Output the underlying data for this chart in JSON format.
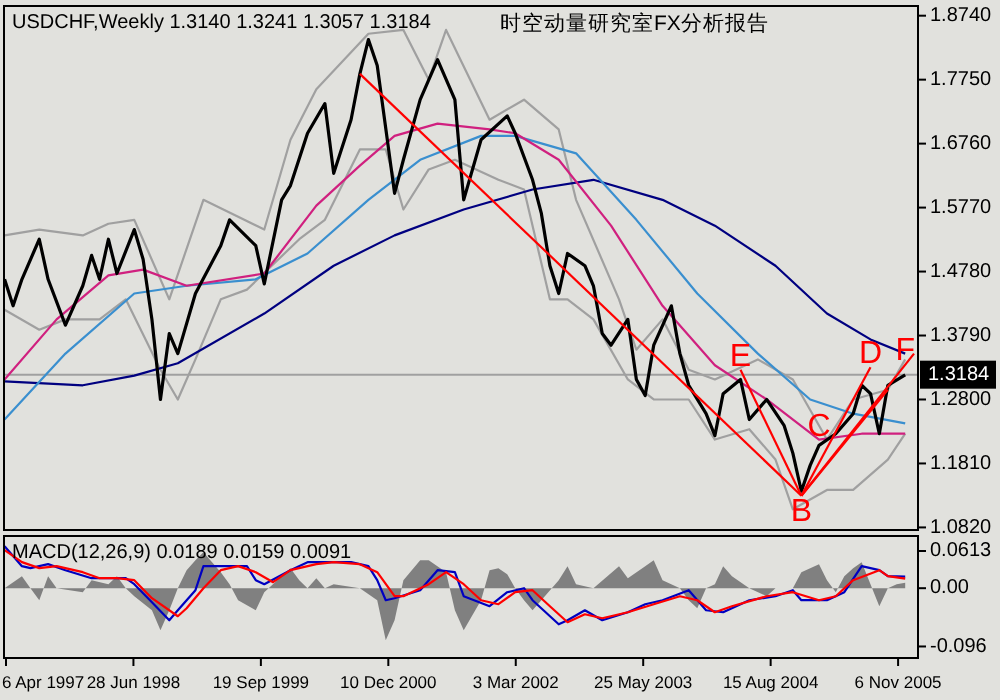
{
  "chart_data": [
    {
      "type": "line",
      "title": "USDCHF,Weekly  1.3140 1.3241 1.3057 1.3184",
      "subtitle": "时空动量研究室FX分析报告",
      "xlim": [
        "1997-03-30",
        "2006-01-15"
      ],
      "ylim": [
        1.078,
        1.889
      ],
      "yticks": [
        {
          "value": 1.874,
          "label": "1.8740"
        },
        {
          "value": 1.775,
          "label": "1.7750"
        },
        {
          "value": 1.676,
          "label": "1.6760"
        },
        {
          "value": 1.577,
          "label": "1.5770"
        },
        {
          "value": 1.478,
          "label": "1.4780"
        },
        {
          "value": 1.379,
          "label": "1.3790"
        },
        {
          "value": 1.28,
          "label": "1.2800"
        },
        {
          "value": 1.181,
          "label": "1.1810"
        },
        {
          "value": 1.082,
          "label": "1.0820"
        }
      ],
      "tick_labels": "y",
      "ref_lines": [
        {
          "axis": "y",
          "value": 1.3184,
          "label": "1.3184",
          "color": "#a0a0a0"
        }
      ],
      "series": [
        {
          "color": "#a0a0a0",
          "x": [
            "1997-04",
            "1997-08",
            "1998-01",
            "1998-04",
            "1998-07",
            "1998-11",
            "1999-03",
            "1999-10",
            "2000-01",
            "2000-04",
            "2000-10",
            "2001-02",
            "2001-05",
            "2001-07",
            "2001-12",
            "2002-04",
            "2002-08",
            "2002-10",
            "2003-03",
            "2003-05",
            "2003-08",
            "2003-11",
            "2004-02",
            "2004-07",
            "2004-11",
            "2005-03",
            "2005-06",
            "2005-10",
            "2005-12"
          ],
          "values": [
            1.534,
            1.543,
            1.534,
            1.552,
            1.558,
            1.435,
            1.589,
            1.543,
            1.682,
            1.76,
            1.846,
            1.852,
            1.775,
            1.852,
            1.713,
            1.744,
            1.698,
            1.589,
            1.435,
            1.357,
            1.404,
            1.326,
            1.311,
            1.342,
            1.311,
            1.218,
            1.28,
            1.295,
            1.342
          ]
        },
        {
          "color": "#a0a0a0",
          "x": [
            "1997-04",
            "1997-08",
            "1997-11",
            "1998-03",
            "1998-06",
            "1998-10",
            "1998-12",
            "1999-02",
            "1999-05",
            "1999-08",
            "2000-02",
            "2000-05",
            "2000-09",
            "2000-12",
            "2001-02",
            "2001-05",
            "2001-08",
            "2002-01",
            "2002-04",
            "2002-07",
            "2002-09",
            "2002-12",
            "2003-04",
            "2003-07",
            "2003-11",
            "2004-02",
            "2004-06",
            "2004-09",
            "2004-11",
            "2005-03",
            "2005-06",
            "2005-10",
            "2005-12"
          ],
          "values": [
            1.419,
            1.388,
            1.404,
            1.404,
            1.435,
            1.326,
            1.28,
            1.342,
            1.435,
            1.45,
            1.528,
            1.558,
            1.667,
            1.667,
            1.574,
            1.636,
            1.651,
            1.62,
            1.605,
            1.435,
            1.435,
            1.404,
            1.311,
            1.28,
            1.28,
            1.218,
            1.234,
            1.187,
            1.11,
            1.14,
            1.14,
            1.187,
            1.227
          ]
        },
        {
          "color": "#000080",
          "x": [
            "1997-04",
            "1998-01",
            "1998-07",
            "1998-12",
            "1999-10",
            "2000-06",
            "2001-01",
            "2001-09",
            "2002-05",
            "2002-12",
            "2003-08",
            "2004-02",
            "2004-09",
            "2005-03",
            "2005-08",
            "2005-12"
          ],
          "values": [
            1.308,
            1.302,
            1.317,
            1.336,
            1.413,
            1.487,
            1.534,
            1.574,
            1.605,
            1.62,
            1.589,
            1.549,
            1.487,
            1.413,
            1.373,
            1.351
          ]
        },
        {
          "color": "#3a8fcf",
          "x": [
            "1997-04",
            "1997-11",
            "1998-07",
            "1999-01",
            "1999-09",
            "2000-03",
            "2000-10",
            "2001-04",
            "2001-11",
            "2002-03",
            "2002-10",
            "2003-05",
            "2003-12",
            "2004-07",
            "2005-01",
            "2005-06",
            "2005-12"
          ],
          "values": [
            1.249,
            1.351,
            1.444,
            1.456,
            1.466,
            1.506,
            1.589,
            1.651,
            1.688,
            1.688,
            1.661,
            1.558,
            1.444,
            1.351,
            1.28,
            1.258,
            1.243
          ]
        },
        {
          "color": "#d0207f",
          "x": [
            "1997-04",
            "1997-10",
            "1998-04",
            "1998-08",
            "1999-01",
            "1999-10",
            "2000-04",
            "2000-09",
            "2001-01",
            "2001-06",
            "2001-12",
            "2002-03",
            "2002-08",
            "2003-02",
            "2003-08",
            "2004-02",
            "2004-08",
            "2005-02",
            "2005-07",
            "2005-12"
          ],
          "values": [
            1.311,
            1.404,
            1.472,
            1.481,
            1.456,
            1.475,
            1.58,
            1.642,
            1.688,
            1.707,
            1.698,
            1.692,
            1.651,
            1.549,
            1.425,
            1.333,
            1.28,
            1.218,
            1.227,
            1.227
          ]
        },
        {
          "color": "#000000",
          "x": [
            "1997-04",
            "1997-05",
            "1997-06",
            "1997-08",
            "1997-09",
            "1997-11",
            "1998-01",
            "1998-02",
            "1998-03",
            "1998-04",
            "1998-05",
            "1998-07",
            "1998-08",
            "1998-09",
            "1998-10",
            "1998-11",
            "1998-12",
            "1999-02",
            "1999-05",
            "1999-06",
            "1999-09",
            "1999-10",
            "1999-12",
            "2000-01",
            "2000-03",
            "2000-05",
            "2000-06",
            "2000-08",
            "2000-09",
            "2000-10",
            "2000-11",
            "2001-01",
            "2001-02",
            "2001-04",
            "2001-06",
            "2001-08",
            "2001-09",
            "2001-11",
            "2002-02",
            "2002-03",
            "2002-05",
            "2002-06",
            "2002-07",
            "2002-08",
            "2002-09",
            "2002-11",
            "2002-12",
            "2003-01",
            "2003-02",
            "2003-04",
            "2003-05",
            "2003-06",
            "2003-07",
            "2003-09",
            "2003-10",
            "2003-11",
            "2004-01",
            "2004-02",
            "2004-03",
            "2004-05",
            "2004-06",
            "2004-08",
            "2004-10",
            "2004-11",
            "2004-12",
            "2005-01",
            "2005-02",
            "2005-04",
            "2005-06",
            "2005-07",
            "2005-08",
            "2005-09",
            "2005-10",
            "2005-12"
          ],
          "values": [
            1.466,
            1.425,
            1.466,
            1.528,
            1.466,
            1.395,
            1.456,
            1.503,
            1.466,
            1.528,
            1.475,
            1.543,
            1.497,
            1.404,
            1.28,
            1.382,
            1.351,
            1.444,
            1.518,
            1.558,
            1.518,
            1.459,
            1.589,
            1.611,
            1.692,
            1.738,
            1.63,
            1.713,
            1.784,
            1.837,
            1.797,
            1.599,
            1.651,
            1.744,
            1.806,
            1.744,
            1.589,
            1.682,
            1.719,
            1.692,
            1.62,
            1.568,
            1.487,
            1.444,
            1.506,
            1.487,
            1.456,
            1.382,
            1.364,
            1.404,
            1.311,
            1.286,
            1.364,
            1.425,
            1.351,
            1.302,
            1.258,
            1.224,
            1.289,
            1.311,
            1.249,
            1.28,
            1.24,
            1.197,
            1.138,
            1.178,
            1.209,
            1.227,
            1.258,
            1.302,
            1.289,
            1.227,
            1.302,
            1.318
          ]
        },
        {
          "color": "#ff0000",
          "x": [
            "2000-09",
            "2004-12"
          ],
          "values": [
            1.784,
            1.131
          ]
        },
        {
          "color": "#ff0000",
          "x": [
            "2004-05",
            "2004-12"
          ],
          "values": [
            1.326,
            1.131
          ]
        },
        {
          "color": "#ff0000",
          "x": [
            "2004-12",
            "2005-08"
          ],
          "values": [
            1.131,
            1.33
          ]
        },
        {
          "color": "#ff0000",
          "x": [
            "2004-12",
            "2005-10"
          ],
          "values": [
            1.131,
            1.295
          ]
        },
        {
          "color": "#ff0000",
          "x": [
            "2004-12",
            "2006-01"
          ],
          "values": [
            1.131,
            1.351
          ]
        }
      ],
      "annotations": [
        {
          "text": "E",
          "x": "2004-05",
          "y": 1.326
        },
        {
          "text": "C",
          "x": "2005-02",
          "y": 1.218
        },
        {
          "text": "D",
          "x": "2005-08",
          "y": 1.33
        },
        {
          "text": "F",
          "x": "2005-12",
          "y": 1.335
        },
        {
          "text": "B",
          "x": "2004-12",
          "y": 1.131
        }
      ]
    },
    {
      "type": "line",
      "title": "MACD(12,26,9) 0.0189 0.0159 0.0091",
      "xlim": [
        "1997-03-30",
        "2006-01-15"
      ],
      "ylim": [
        -0.115,
        0.086
      ],
      "xticks": [
        {
          "value": "1997-04-06",
          "label": "6 Apr 1997"
        },
        {
          "value": "1998-06-28",
          "label": "28 Jun 1998"
        },
        {
          "value": "1999-09-19",
          "label": "19 Sep 1999"
        },
        {
          "value": "2000-12-10",
          "label": "10 Dec 2000"
        },
        {
          "value": "2002-03-03",
          "label": "3 Mar 2002"
        },
        {
          "value": "2003-05-25",
          "label": "25 May 2003"
        },
        {
          "value": "2004-08-15",
          "label": "15 Aug 2004"
        },
        {
          "value": "2005-11-06",
          "label": "6 Nov 2005"
        }
      ],
      "yticks": [
        {
          "value": 0.0613,
          "label": "0.0613"
        },
        {
          "value": 0,
          "label": "0.00"
        },
        {
          "value": -0.096,
          "label": "-0.096"
        }
      ],
      "series": [
        {
          "type": "area",
          "color": "#808080",
          "x": [
            "1997-04",
            "1997-06",
            "1997-07",
            "1997-08",
            "1997-09",
            "1997-10",
            "1998-01",
            "1998-02",
            "1998-04",
            "1998-05",
            "1998-06",
            "1998-07",
            "1998-09",
            "1998-10",
            "1998-11",
            "1998-12",
            "1999-01",
            "1999-02",
            "1999-03",
            "1999-05",
            "1999-06",
            "1999-07",
            "1999-09",
            "1999-10",
            "1999-12",
            "2000-01",
            "2000-02",
            "2000-03",
            "2000-04",
            "2000-05",
            "2000-06",
            "2000-09",
            "2000-11",
            "2000-12",
            "2001-01",
            "2001-02",
            "2001-04",
            "2001-05",
            "2001-07",
            "2001-08",
            "2001-09",
            "2001-11",
            "2001-12",
            "2002-01",
            "2002-02",
            "2002-03",
            "2002-04",
            "2002-05",
            "2002-06",
            "2002-08",
            "2002-09",
            "2002-10",
            "2002-12",
            "2003-03",
            "2003-04",
            "2003-06",
            "2003-07",
            "2003-08",
            "2003-10",
            "2003-11",
            "2003-12",
            "2004-01",
            "2004-02",
            "2004-03",
            "2004-04",
            "2004-06",
            "2004-08",
            "2004-09",
            "2004-11",
            "2004-12",
            "2005-02",
            "2005-03",
            "2005-04",
            "2005-05",
            "2005-06",
            "2005-07",
            "2005-09",
            "2005-10",
            "2005-11",
            "2005-12"
          ],
          "values": [
            0,
            0.0198,
            0,
            -0.0198,
            0.0198,
            0,
            -0.0066,
            0.0132,
            0.0066,
            0.0198,
            0,
            -0.0132,
            -0.0363,
            -0.0693,
            -0.0363,
            0,
            0.0297,
            0.0462,
            0.0594,
            0.0264,
            0.0066,
            -0.0198,
            -0.0363,
            -0.0066,
            0.0198,
            0.033,
            0.0132,
            0,
            0.0165,
            0,
            0.0066,
            0,
            -0.0198,
            -0.0858,
            -0.0528,
            0.0132,
            0.0462,
            0.0462,
            0.0264,
            -0.0363,
            -0.0693,
            -0.0198,
            0.0297,
            0.033,
            0.0231,
            0,
            -0.0198,
            -0.0363,
            -0.0198,
            0.0132,
            0.0363,
            0.0066,
            0,
            0.0363,
            0.0165,
            0.0363,
            0.0462,
            0.0132,
            0,
            -0.0198,
            -0.033,
            0,
            0.0066,
            0.0363,
            0.0198,
            0,
            -0.0132,
            0,
            0,
            0.0264,
            0.0396,
            0.0132,
            -0.0066,
            0.0198,
            0.033,
            0.0429,
            -0.0297,
            0,
            0.0066,
            0.0091
          ]
        },
        {
          "color": "#0000c0",
          "x": [
            "1997-04",
            "1997-06",
            "1997-07",
            "1997-09",
            "1997-11",
            "1998-02",
            "1998-04",
            "1998-06",
            "1998-07",
            "1998-09",
            "1998-11",
            "1998-12",
            "1999-02",
            "1999-03",
            "1999-06",
            "1999-08",
            "1999-09",
            "1999-10",
            "2000-01",
            "2000-03",
            "2000-05",
            "2000-08",
            "2000-10",
            "2000-11",
            "2000-12",
            "2001-01",
            "2001-04",
            "2001-06",
            "2001-08",
            "2001-09",
            "2001-12",
            "2002-02",
            "2002-04",
            "2002-05",
            "2002-08",
            "2002-09",
            "2002-11",
            "2003-01",
            "2003-04",
            "2003-06",
            "2003-08",
            "2003-11",
            "2004-01",
            "2004-03",
            "2004-06",
            "2004-09",
            "2004-11",
            "2004-12",
            "2005-03",
            "2005-05",
            "2005-07",
            "2005-09",
            "2005-10",
            "2005-12"
          ],
          "values": [
            0.0693,
            0.0363,
            0.033,
            0.0396,
            0.0297,
            0.0165,
            0.0165,
            0.0165,
            0.0066,
            -0.0231,
            -0.0528,
            -0.0363,
            -0.0033,
            0.0363,
            0.0363,
            0.0363,
            0.0132,
            0.0066,
            0.0297,
            0.0429,
            0.0429,
            0.0429,
            0.0363,
            0.0132,
            -0.0198,
            -0.0165,
            -0.0033,
            0.0297,
            0.0264,
            -0.0132,
            -0.0297,
            -0.0066,
            0,
            -0.0198,
            -0.0594,
            -0.0528,
            -0.0363,
            -0.0528,
            -0.0396,
            -0.0264,
            -0.0198,
            -0.0033,
            -0.0363,
            -0.0396,
            -0.0198,
            -0.0132,
            -0.0033,
            -0.0198,
            -0.0198,
            -0.0066,
            0.0363,
            0.0297,
            0.0198,
            0.0189
          ]
        },
        {
          "color": "#ff0000",
          "x": [
            "1997-04",
            "1997-06",
            "1997-08",
            "1997-10",
            "1998-01",
            "1998-03",
            "1998-05",
            "1998-07",
            "1998-09",
            "1998-12",
            "1999-01",
            "1999-03",
            "1999-05",
            "1999-07",
            "1999-09",
            "1999-11",
            "2000-01",
            "2000-04",
            "2000-06",
            "2000-09",
            "2000-11",
            "2001-01",
            "2001-02",
            "2001-05",
            "2001-07",
            "2001-09",
            "2001-11",
            "2002-01",
            "2002-03",
            "2002-05",
            "2002-07",
            "2002-09",
            "2002-11",
            "2003-01",
            "2003-04",
            "2003-07",
            "2003-10",
            "2003-12",
            "2004-02",
            "2004-04",
            "2004-08",
            "2004-11",
            "2005-02",
            "2005-04",
            "2005-06",
            "2005-09",
            "2005-10",
            "2005-12"
          ],
          "values": [
            0.0627,
            0.0429,
            0.033,
            0.0363,
            0.0264,
            0.0165,
            0.0165,
            0.0132,
            -0.0165,
            -0.0462,
            -0.033,
            0,
            0.0297,
            0.0363,
            0.0264,
            0.0099,
            0.0297,
            0.0396,
            0.0429,
            0.0396,
            0.0264,
            -0.0132,
            -0.0132,
            0.0066,
            0.0264,
            0.0066,
            -0.0198,
            -0.0264,
            -0.0066,
            -0.0033,
            -0.0297,
            -0.0561,
            -0.0429,
            -0.0495,
            -0.0396,
            -0.0264,
            -0.0132,
            -0.0198,
            -0.0396,
            -0.0297,
            -0.0132,
            -0.0066,
            -0.0198,
            -0.0132,
            0.0132,
            0.0297,
            0.0198,
            0.0159
          ]
        }
      ]
    }
  ]
}
